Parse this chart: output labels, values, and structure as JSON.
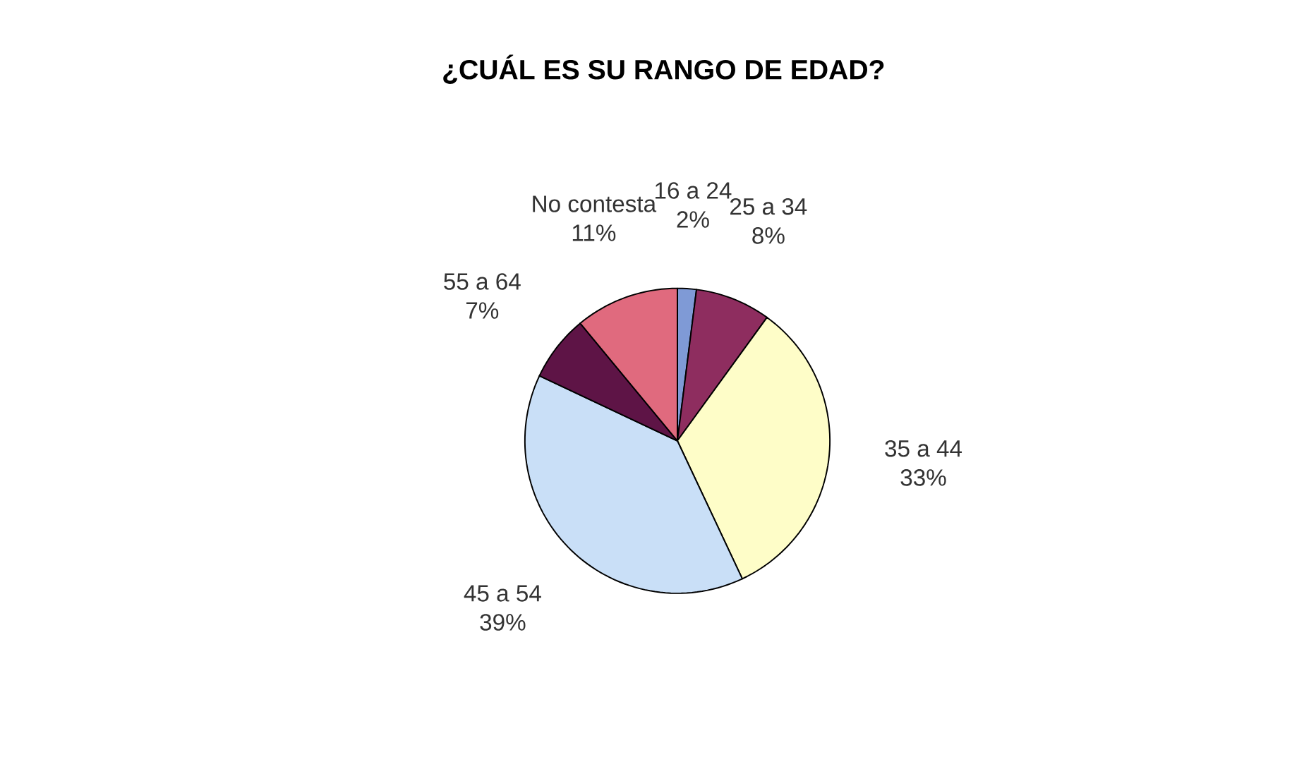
{
  "chart_data": {
    "type": "pie",
    "title": "¿CUÁL ES SU RANGO DE EDAD?",
    "categories": [
      "16 a 24",
      "25 a 34",
      "35 a 44",
      "45 a 54",
      "55 a 64",
      "No contesta"
    ],
    "values": [
      2,
      8,
      33,
      39,
      7,
      11
    ],
    "value_labels": [
      "2%",
      "8%",
      "33%",
      "39%",
      "7%",
      "11%"
    ],
    "colors": [
      "#7f9ad6",
      "#8e2d5f",
      "#fefdc8",
      "#c9dff7",
      "#5e1446",
      "#e06a7e"
    ]
  }
}
